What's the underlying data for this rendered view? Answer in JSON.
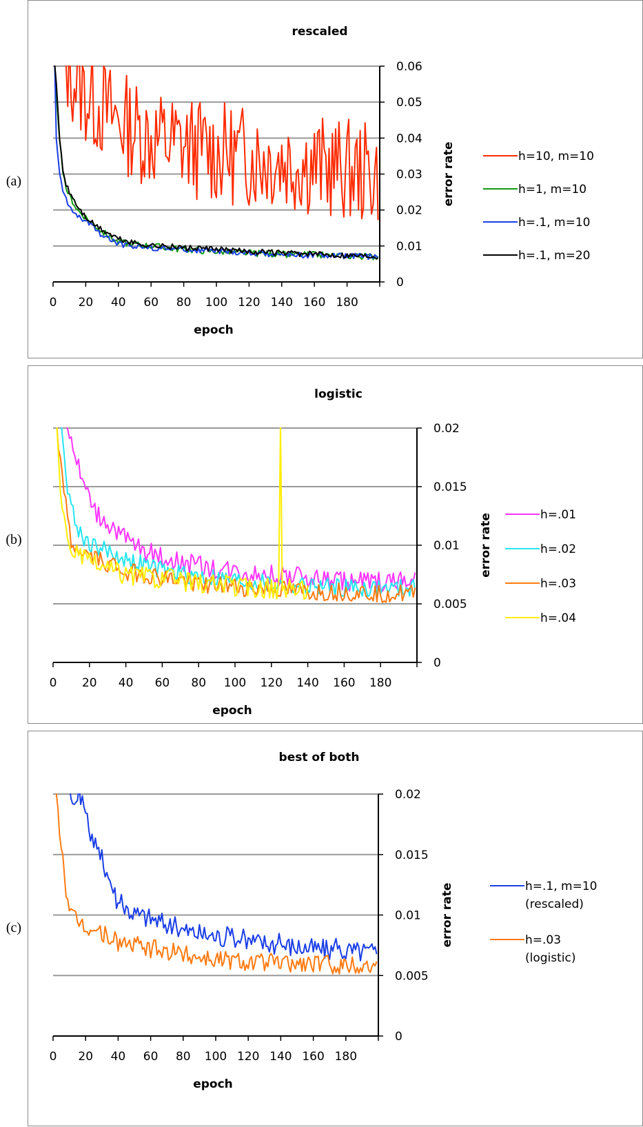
{
  "panel_labels": [
    "(a)",
    "(b)",
    "(c)"
  ],
  "chart_data": [
    {
      "type": "line",
      "title": "rescaled",
      "xlabel": "epoch",
      "ylabel": "error rate",
      "xlim": [
        0,
        200
      ],
      "ylim": [
        0,
        0.06
      ],
      "xticks": [
        0,
        20,
        40,
        60,
        80,
        100,
        120,
        140,
        160,
        180
      ],
      "yticks": [
        0,
        0.01,
        0.02,
        0.03,
        0.04,
        0.05,
        0.06
      ],
      "ytick_labels": [
        "0",
        "0.01",
        "0.02",
        "0.03",
        "0.04",
        "0.05",
        "0.06"
      ],
      "grid": true,
      "legend": "right",
      "series": [
        {
          "name": "h=10, m=10",
          "color": "#ff2a00",
          "style": "noisy",
          "x": [
            5,
            10,
            20,
            40,
            60,
            100,
            140,
            180,
            199
          ],
          "y": [
            0.06,
            0.058,
            0.052,
            0.045,
            0.04,
            0.036,
            0.034,
            0.031,
            0.03
          ],
          "noise": 0.008
        },
        {
          "name": "h=1, m=10",
          "color": "#119911",
          "style": "smooth",
          "x": [
            1,
            2,
            4,
            6,
            8,
            10,
            15,
            20,
            25,
            30,
            40,
            50,
            60,
            80,
            100,
            120,
            140,
            160,
            180,
            199
          ],
          "y": [
            0.06,
            0.052,
            0.04,
            0.03,
            0.026,
            0.024,
            0.02,
            0.018,
            0.016,
            0.014,
            0.011,
            0.0105,
            0.01,
            0.009,
            0.0085,
            0.008,
            0.0077,
            0.0075,
            0.0072,
            0.007
          ],
          "noise": 0.0009
        },
        {
          "name": "h=.1, m=10",
          "color": "#1a3ee6",
          "style": "smooth",
          "x": [
            1,
            2,
            4,
            6,
            8,
            10,
            15,
            20,
            25,
            30,
            40,
            50,
            60,
            80,
            100,
            120,
            140,
            160,
            180,
            199
          ],
          "y": [
            0.06,
            0.04,
            0.03,
            0.025,
            0.023,
            0.021,
            0.018,
            0.017,
            0.015,
            0.013,
            0.0105,
            0.01,
            0.0095,
            0.009,
            0.0085,
            0.008,
            0.0076,
            0.0074,
            0.0072,
            0.007
          ],
          "noise": 0.0008
        },
        {
          "name": "h=.1, m=20",
          "color": "#000000",
          "style": "smooth",
          "x": [
            1,
            2,
            4,
            6,
            8,
            10,
            15,
            20,
            25,
            30,
            40,
            50,
            60,
            80,
            100,
            120,
            140,
            160,
            180,
            199
          ],
          "y": [
            0.06,
            0.055,
            0.04,
            0.031,
            0.027,
            0.025,
            0.021,
            0.018,
            0.016,
            0.0145,
            0.012,
            0.0108,
            0.0102,
            0.0095,
            0.009,
            0.0085,
            0.008,
            0.0077,
            0.0075,
            0.0072
          ],
          "noise": 0.0008
        }
      ]
    },
    {
      "type": "line",
      "title": "logistic",
      "xlabel": "epoch",
      "ylabel": "error rate",
      "xlim": [
        0,
        200
      ],
      "ylim": [
        0,
        0.02
      ],
      "xticks": [
        0,
        20,
        40,
        60,
        80,
        100,
        120,
        140,
        160,
        180
      ],
      "yticks": [
        0,
        0.005,
        0.01,
        0.015,
        0.02
      ],
      "ytick_labels": [
        "0",
        "0.005",
        "0.01",
        "0.015",
        "0.02"
      ],
      "grid": true,
      "legend": "right",
      "series": [
        {
          "name": "h=.01",
          "color": "#ff33ff",
          "style": "smooth",
          "x": [
            2,
            5,
            10,
            15,
            20,
            25,
            30,
            40,
            50,
            60,
            80,
            100,
            120,
            140,
            160,
            180,
            199
          ],
          "y": [
            0.03,
            0.022,
            0.019,
            0.016,
            0.014,
            0.0125,
            0.012,
            0.0105,
            0.0095,
            0.009,
            0.0082,
            0.0078,
            0.0074,
            0.0072,
            0.007,
            0.0069,
            0.0068
          ],
          "noise": 0.0009
        },
        {
          "name": "h=.02",
          "color": "#22e6f0",
          "style": "smooth",
          "x": [
            2,
            5,
            8,
            12,
            15,
            20,
            30,
            40,
            60,
            80,
            100,
            120,
            140,
            160,
            180,
            199
          ],
          "y": [
            0.024,
            0.02,
            0.015,
            0.012,
            0.011,
            0.0102,
            0.0095,
            0.0088,
            0.0078,
            0.0074,
            0.007,
            0.0067,
            0.0065,
            0.0064,
            0.0063,
            0.0063
          ],
          "noise": 0.0008
        },
        {
          "name": "h=.03",
          "color": "#ff7a10",
          "style": "smooth",
          "x": [
            2,
            4,
            6,
            8,
            10,
            15,
            20,
            30,
            40,
            60,
            80,
            100,
            120,
            140,
            160,
            180,
            199
          ],
          "y": [
            0.02,
            0.017,
            0.015,
            0.012,
            0.01,
            0.0095,
            0.009,
            0.0085,
            0.0078,
            0.0072,
            0.0068,
            0.0064,
            0.0062,
            0.006,
            0.006,
            0.0059,
            0.0058
          ],
          "noise": 0.0008
        },
        {
          "name": "h=.04",
          "color": "#ffee00",
          "style": "smooth",
          "x": [
            2,
            4,
            6,
            8,
            10,
            15,
            20,
            30,
            40,
            60,
            80,
            100,
            124,
            125,
            126,
            140
          ],
          "y": [
            0.02,
            0.015,
            0.012,
            0.0105,
            0.0098,
            0.009,
            0.0085,
            0.008,
            0.0075,
            0.0072,
            0.0068,
            0.0065,
            0.0063,
            0.02,
            0.0063,
            0.0062
          ],
          "noise": 0.0009
        }
      ]
    },
    {
      "type": "line",
      "title": "best of both",
      "xlabel": "epoch",
      "ylabel": "error rate",
      "xlim": [
        0,
        200
      ],
      "ylim": [
        0,
        0.02
      ],
      "xticks": [
        0,
        20,
        40,
        60,
        80,
        100,
        120,
        140,
        160,
        180
      ],
      "yticks": [
        0,
        0.005,
        0.01,
        0.015,
        0.02
      ],
      "ytick_labels": [
        "0",
        "0.005",
        "0.01",
        "0.015",
        "0.02"
      ],
      "grid": true,
      "legend": "right",
      "series": [
        {
          "name": "h=.1, m=10",
          "name_line2": "(rescaled)",
          "color": "#1a3ee6",
          "style": "smooth",
          "x": [
            8,
            12,
            16,
            20,
            25,
            30,
            35,
            40,
            50,
            60,
            80,
            100,
            120,
            140,
            160,
            180,
            199
          ],
          "y": [
            0.021,
            0.019,
            0.02,
            0.018,
            0.016,
            0.0145,
            0.013,
            0.011,
            0.0102,
            0.0098,
            0.0088,
            0.0083,
            0.0079,
            0.0076,
            0.0073,
            0.0071,
            0.007
          ],
          "noise": 0.0009
        },
        {
          "name": "h=.03",
          "name_line2": "(logistic)",
          "color": "#ff7a10",
          "style": "smooth",
          "x": [
            2,
            4,
            6,
            8,
            10,
            15,
            20,
            30,
            40,
            60,
            80,
            100,
            120,
            140,
            160,
            180,
            199
          ],
          "y": [
            0.02,
            0.017,
            0.015,
            0.012,
            0.01,
            0.0095,
            0.009,
            0.0085,
            0.0078,
            0.0072,
            0.0068,
            0.0064,
            0.0062,
            0.006,
            0.006,
            0.0059,
            0.0058
          ],
          "noise": 0.0008
        }
      ]
    }
  ]
}
